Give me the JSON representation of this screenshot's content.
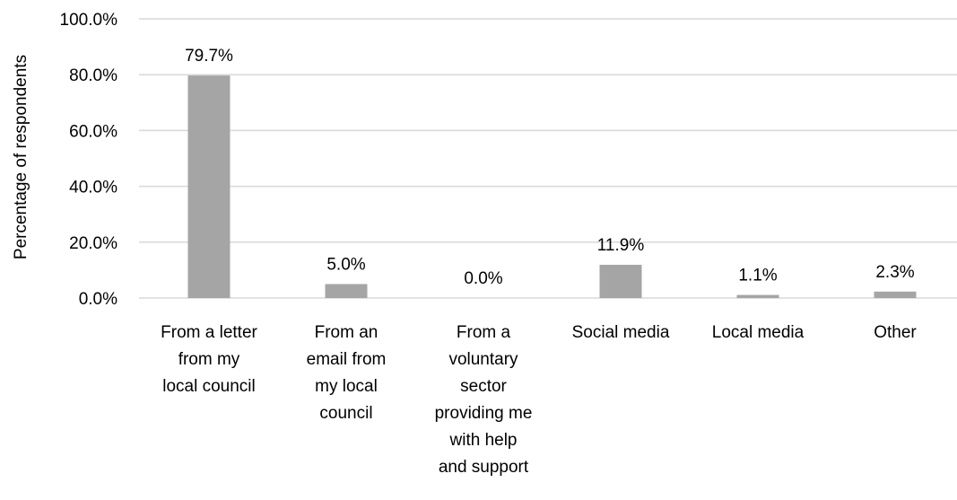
{
  "chart_data": {
    "type": "bar",
    "title": "",
    "xlabel": "",
    "ylabel": "Percentage of respondents",
    "ylim": [
      0,
      100
    ],
    "yticks": [
      0,
      20,
      40,
      60,
      80,
      100
    ],
    "ytick_labels": [
      "0.0%",
      "20.0%",
      "40.0%",
      "60.0%",
      "80.0%",
      "100.0%"
    ],
    "grid": true,
    "legend": "none",
    "bar_color": "#A5A5A5",
    "grid_color": "#D9D9D9",
    "categories": [
      [
        "From a letter",
        "from my",
        "local council"
      ],
      [
        "From an",
        "email from",
        "my local",
        "council"
      ],
      [
        "From a",
        "voluntary",
        "sector",
        "providing me",
        "with help",
        "and support"
      ],
      [
        "Social media"
      ],
      [
        "Local media"
      ],
      [
        "Other"
      ]
    ],
    "values": [
      79.7,
      5.0,
      0.0,
      11.9,
      1.1,
      2.3
    ],
    "data_labels": [
      "79.7%",
      "5.0%",
      "0.0%",
      "11.9%",
      "1.1%",
      "2.3%"
    ]
  }
}
